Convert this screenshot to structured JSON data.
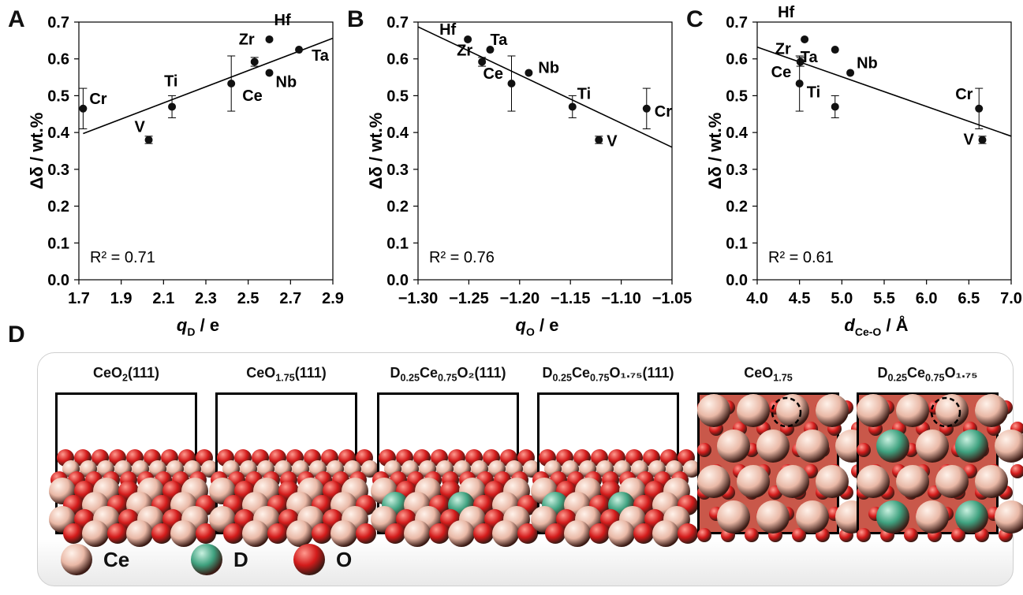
{
  "colors": {
    "ce": "#e9b8a6",
    "d": "#3fa17f",
    "o": "#d31b1b",
    "line": "#000000"
  },
  "panel_letters": [
    "A",
    "B",
    "C",
    "D"
  ],
  "chart_data": [
    {
      "type": "scatter",
      "xlabel_main": "q",
      "xlabel_sub": "D",
      "xlabel_tail": " / e",
      "ylabel": "Δδ / wt.%",
      "xlim": [
        1.7,
        2.9
      ],
      "ylim": [
        0.0,
        0.7
      ],
      "xticks": [
        "1.7",
        "1.9",
        "2.1",
        "2.3",
        "2.5",
        "2.7",
        "2.9"
      ],
      "yticks": [
        "0.0",
        "0.1",
        "0.2",
        "0.3",
        "0.4",
        "0.5",
        "0.6",
        "0.7"
      ],
      "annotation": "R² = 0.71",
      "fit": [
        [
          1.72,
          0.397
        ],
        [
          2.9,
          0.656
        ]
      ],
      "points": [
        {
          "label": "Cr",
          "x": 1.72,
          "y": 0.465,
          "err": 0.055
        },
        {
          "label": "V",
          "x": 2.03,
          "y": 0.38,
          "err": 0.01
        },
        {
          "label": "Ti",
          "x": 2.14,
          "y": 0.47,
          "err": 0.03
        },
        {
          "label": "Ce",
          "x": 2.42,
          "y": 0.533,
          "err": 0.075
        },
        {
          "label": "Zr",
          "x": 2.53,
          "y": 0.592,
          "err": 0.012
        },
        {
          "label": "Hf",
          "x": 2.6,
          "y": 0.653,
          "err": 0
        },
        {
          "label": "Nb",
          "x": 2.6,
          "y": 0.562,
          "err": 0
        },
        {
          "label": "Ta",
          "x": 2.74,
          "y": 0.625,
          "err": 0
        }
      ]
    },
    {
      "type": "scatter",
      "xlabel_main": "q",
      "xlabel_sub": "O",
      "xlabel_tail": " / e",
      "ylabel": "Δδ / wt.%",
      "xlim": [
        -1.3,
        -1.05
      ],
      "ylim": [
        0.0,
        0.7
      ],
      "xticks": [
        "−1.30",
        "−1.25",
        "−1.20",
        "−1.15",
        "−1.10",
        "−1.05"
      ],
      "yticks": [
        "0.0",
        "0.1",
        "0.2",
        "0.3",
        "0.4",
        "0.5",
        "0.6",
        "0.7"
      ],
      "annotation": "R² = 0.76",
      "fit": [
        [
          -1.3,
          0.687
        ],
        [
          -1.05,
          0.36
        ]
      ],
      "points": [
        {
          "label": "Hf",
          "x": -1.251,
          "y": 0.653,
          "err": 0
        },
        {
          "label": "Ta",
          "x": -1.229,
          "y": 0.625,
          "err": 0
        },
        {
          "label": "Zr",
          "x": -1.237,
          "y": 0.592,
          "err": 0.012
        },
        {
          "label": "Nb",
          "x": -1.191,
          "y": 0.562,
          "err": 0
        },
        {
          "label": "Ce",
          "x": -1.208,
          "y": 0.533,
          "err": 0.075
        },
        {
          "label": "Ti",
          "x": -1.148,
          "y": 0.47,
          "err": 0.03
        },
        {
          "label": "V",
          "x": -1.122,
          "y": 0.38,
          "err": 0.01
        },
        {
          "label": "Cr",
          "x": -1.075,
          "y": 0.465,
          "err": 0.055
        }
      ]
    },
    {
      "type": "scatter",
      "xlabel_main": "d",
      "xlabel_sub": "Ce-O",
      "xlabel_tail": " / Å",
      "ylabel": "Δδ / wt.%",
      "xlim": [
        4.0,
        7.0
      ],
      "ylim": [
        0.0,
        0.7
      ],
      "xticks": [
        "4.0",
        "4.5",
        "5.0",
        "5.5",
        "6.0",
        "6.5",
        "7.0"
      ],
      "yticks": [
        "0.0",
        "0.1",
        "0.2",
        "0.3",
        "0.4",
        "0.5",
        "0.6",
        "0.7"
      ],
      "annotation": "R² = 0.61",
      "fit": [
        [
          4.0,
          0.632
        ],
        [
          7.0,
          0.39
        ]
      ],
      "points": [
        {
          "label": "Hf",
          "x": 4.56,
          "y": 0.653,
          "err": 0
        },
        {
          "label": "Zr",
          "x": 4.51,
          "y": 0.592,
          "err": 0.012
        },
        {
          "label": "Ce",
          "x": 4.5,
          "y": 0.533,
          "err": 0.075
        },
        {
          "label": "Ta",
          "x": 4.92,
          "y": 0.625,
          "err": 0
        },
        {
          "label": "Nb",
          "x": 5.1,
          "y": 0.562,
          "err": 0
        },
        {
          "label": "Ti",
          "x": 4.92,
          "y": 0.47,
          "err": 0.03
        },
        {
          "label": "Cr",
          "x": 6.62,
          "y": 0.465,
          "err": 0.055
        },
        {
          "label": "V",
          "x": 6.66,
          "y": 0.38,
          "err": 0.01
        }
      ]
    }
  ],
  "structures": [
    {
      "pre": "CeO",
      "sub1": "2",
      "mid": "(111)",
      "sub2": "",
      "post": "",
      "view": "side",
      "doped": false
    },
    {
      "pre": "CeO",
      "sub1": "1.75",
      "mid": "(111)",
      "sub2": "",
      "post": "",
      "view": "side",
      "doped": false
    },
    {
      "pre": "D",
      "sub1": "0.25",
      "mid": "Ce",
      "sub2": "0.75",
      "post": "O₂(111)",
      "view": "side",
      "doped": true
    },
    {
      "pre": "D",
      "sub1": "0.25",
      "mid": "Ce",
      "sub2": "0.75",
      "post": "O₁.₇₅(111)",
      "view": "side",
      "doped": true
    },
    {
      "pre": "CeO",
      "sub1": "1.75",
      "mid": "",
      "sub2": "",
      "post": "",
      "view": "top",
      "doped": false
    },
    {
      "pre": "D",
      "sub1": "0.25",
      "mid": "Ce",
      "sub2": "0.75",
      "post": "O₁.₇₅",
      "view": "top",
      "doped": true
    }
  ],
  "legend": [
    {
      "label": "Ce",
      "atom": "ce"
    },
    {
      "label": "D",
      "atom": "d"
    },
    {
      "label": "O",
      "atom": "o"
    }
  ]
}
